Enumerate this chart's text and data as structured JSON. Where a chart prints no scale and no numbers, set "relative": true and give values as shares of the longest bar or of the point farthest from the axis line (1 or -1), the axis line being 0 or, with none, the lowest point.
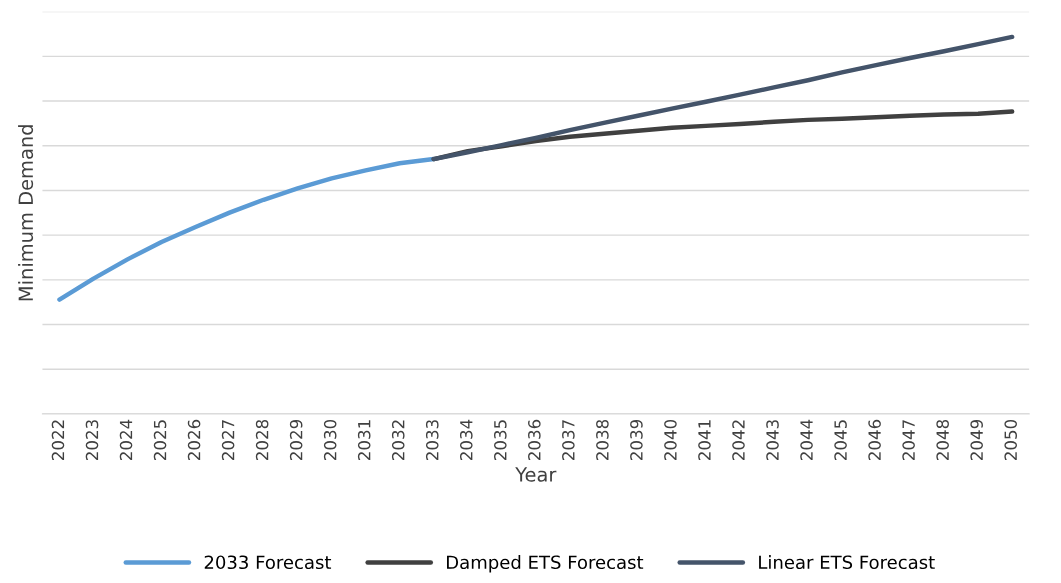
{
  "chart_data": {
    "type": "line",
    "relative": true,
    "xlabel": "Year",
    "ylabel": "Minimum Demand",
    "grid": "y",
    "legend": "bottom",
    "tick_labels": "x",
    "line_style": "solid",
    "marker": "none",
    "categories": [
      "2022",
      "2023",
      "2024",
      "2025",
      "2026",
      "2027",
      "2028",
      "2029",
      "2030",
      "2031",
      "2032",
      "2033",
      "2034",
      "2035",
      "2036",
      "2037",
      "2038",
      "2039",
      "2040",
      "2041",
      "2042",
      "2043",
      "2044",
      "2045",
      "2046",
      "2047",
      "2048",
      "2049",
      "2050"
    ],
    "series": [
      {
        "name": "2033 Forecast",
        "color": "#5b9bd5",
        "values": [
          0.303,
          0.359,
          0.41,
          0.456,
          0.496,
          0.534,
          0.568,
          0.598,
          0.625,
          0.646,
          0.665,
          0.676,
          null,
          null,
          null,
          null,
          null,
          null,
          null,
          null,
          null,
          null,
          null,
          null,
          null,
          null,
          null,
          null,
          null
        ]
      },
      {
        "name": "Damped ETS Forecast",
        "color": "#404040",
        "values": [
          null,
          null,
          null,
          null,
          null,
          null,
          null,
          null,
          null,
          null,
          null,
          0.676,
          0.697,
          0.71,
          0.724,
          0.735,
          0.743,
          0.751,
          0.759,
          0.764,
          0.769,
          0.775,
          0.78,
          0.783,
          0.787,
          0.791,
          0.794,
          0.796,
          0.802
        ]
      },
      {
        "name": "Linear ETS Forecast",
        "color": "#44546a",
        "values": [
          null,
          null,
          null,
          null,
          null,
          null,
          null,
          null,
          null,
          null,
          null,
          0.676,
          0.694,
          0.713,
          0.732,
          0.753,
          0.772,
          0.791,
          0.81,
          0.828,
          0.847,
          0.866,
          0.885,
          0.906,
          0.925,
          0.944,
          0.962,
          0.981,
          1
        ]
      }
    ]
  }
}
